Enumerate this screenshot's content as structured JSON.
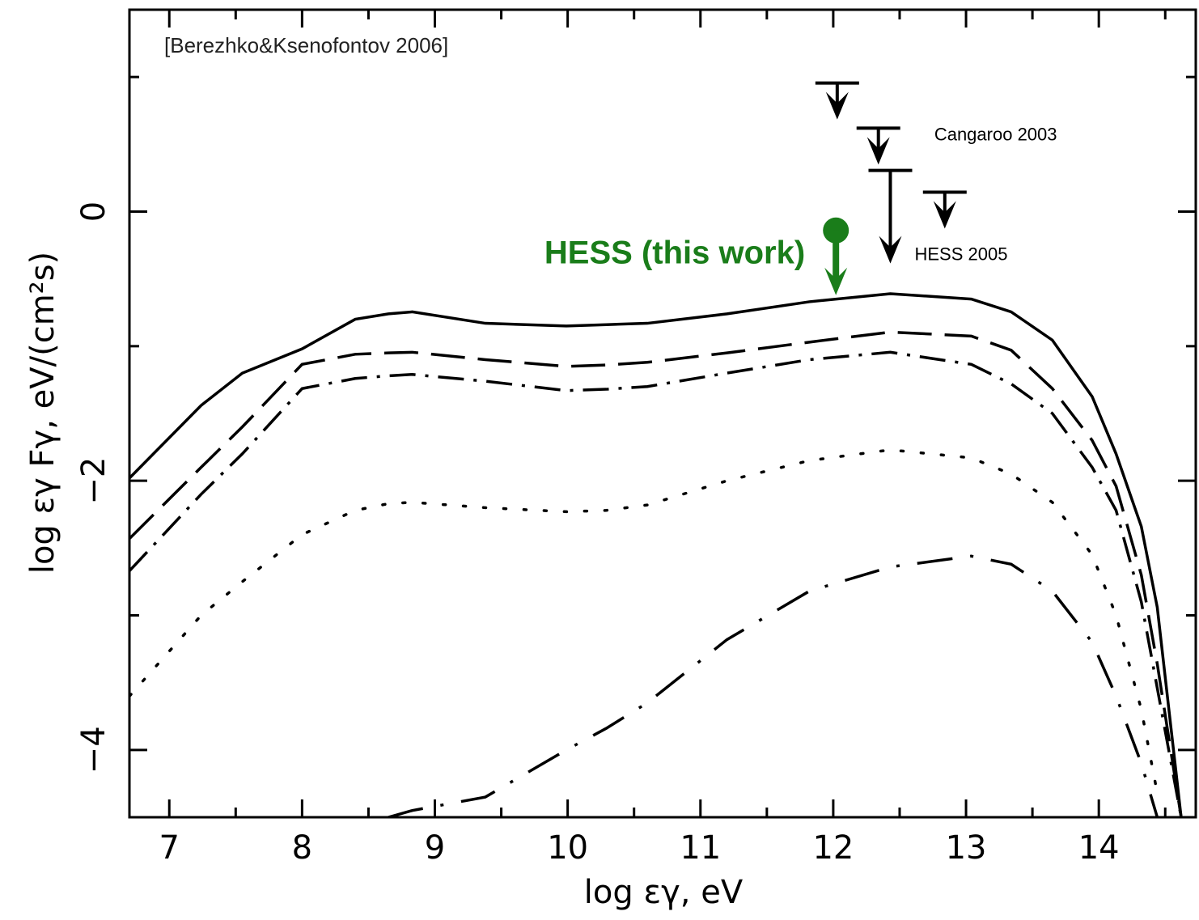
{
  "chart_data": {
    "type": "line",
    "annotation": "[Berezhko&Ksenofontov 2006]",
    "xlabel": "log εγ, eV",
    "ylabel": "log εγ Fγ, eV/(cm²s)",
    "xlim": [
      6.7,
      14.73
    ],
    "ylim": [
      -4.5,
      1.5
    ],
    "xticks": [
      7,
      8,
      9,
      10,
      11,
      12,
      13,
      14
    ],
    "yticks": [
      {
        "value": -4,
        "label": "−4"
      },
      {
        "value": -2,
        "label": "−2"
      },
      0
    ],
    "xminorticks": [
      7.5,
      8.5,
      9.5,
      10.5,
      11.5,
      12.5,
      13.5,
      14.5
    ],
    "yminorticks": [
      -3,
      -1,
      1
    ],
    "x": [
      6.7,
      7.24,
      7.55,
      8,
      8.4,
      8.65,
      8.83,
      9.38,
      9.99,
      10.29,
      10.6,
      11.2,
      11.82,
      12.43,
      13.04,
      13.34,
      13.65,
      13.95,
      14.13,
      14.32,
      14.44,
      14.62
    ],
    "series": [
      {
        "color": "#000000",
        "dash": "solid",
        "values": [
          -1.98,
          -1.44,
          -1.2,
          -1.02,
          -0.8,
          -0.76,
          -0.745,
          -0.83,
          -0.85,
          -0.84,
          -0.83,
          -0.76,
          -0.67,
          -0.61,
          -0.65,
          -0.745,
          -0.955,
          -1.375,
          -1.8,
          -2.34,
          -2.94,
          -4.5
        ]
      },
      {
        "color": "#000000",
        "dash": "dashed",
        "values": [
          -2.43,
          -1.9,
          -1.6,
          -1.135,
          -1.06,
          -1.05,
          -1.045,
          -1.1,
          -1.15,
          -1.14,
          -1.12,
          -1.05,
          -0.97,
          -0.895,
          -0.925,
          -1.03,
          -1.315,
          -1.7,
          -2.04,
          -2.7,
          -3.36,
          -4.5
        ]
      },
      {
        "color": "#000000",
        "dash": "dashdot",
        "values": [
          -2.67,
          -2.1,
          -1.8,
          -1.315,
          -1.24,
          -1.22,
          -1.21,
          -1.26,
          -1.33,
          -1.32,
          -1.3,
          -1.2,
          -1.1,
          -1.045,
          -1.135,
          -1.28,
          -1.5,
          -1.9,
          -2.22,
          -2.9,
          -3.54,
          -4.5
        ]
      },
      {
        "color": "#000000",
        "dash": "dotted",
        "values": [
          -3.6,
          -3.0,
          -2.75,
          -2.4,
          -2.22,
          -2.17,
          -2.16,
          -2.2,
          -2.23,
          -2.22,
          -2.18,
          -2.0,
          -1.85,
          -1.77,
          -1.83,
          -1.95,
          -2.16,
          -2.55,
          -3.0,
          -3.7,
          -4.32,
          null
        ]
      },
      {
        "color": "#000000",
        "dash": "longdashdot",
        "values": [
          null,
          null,
          null,
          null,
          null,
          -4.5,
          -4.45,
          -4.35,
          -4.0,
          -3.84,
          -3.65,
          -3.18,
          -2.82,
          -2.64,
          -2.56,
          -2.62,
          -2.82,
          -3.2,
          -3.6,
          -4.1,
          -4.5,
          null
        ]
      }
    ],
    "upper_limits": [
      {
        "name": "Cangaroo 2003",
        "color": "#000000",
        "x": [
          12.03,
          12.34
        ],
        "values": [
          0.955,
          0.62
        ]
      },
      {
        "name": "HESS 2005",
        "color": "#000000",
        "x": [
          12.43,
          12.84
        ],
        "values": [
          0.306,
          0.144
        ]
      },
      {
        "name": "HESS (this work)",
        "color": "#1a7d1a",
        "x": [
          12.02
        ],
        "values": [
          -0.14
        ]
      }
    ]
  }
}
